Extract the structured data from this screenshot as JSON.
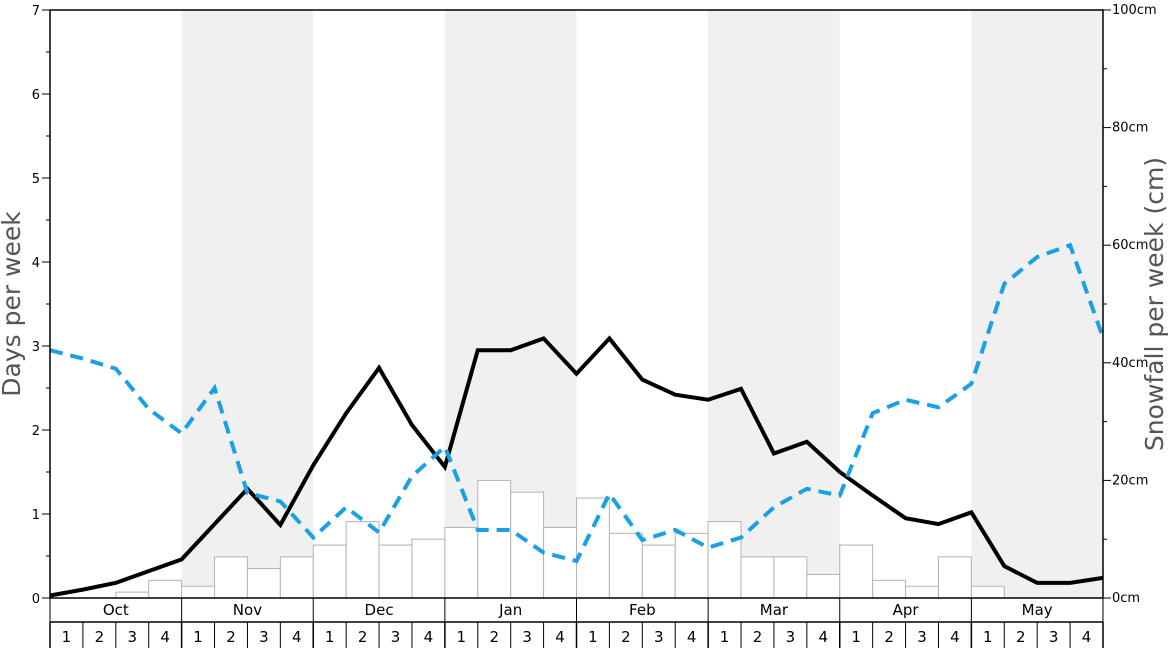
{
  "chart_data": {
    "type": "bar+line",
    "title": "",
    "ylabel_left": "Days per week",
    "ylabel_right": "Snowfall per week (cm)",
    "ylim_left": [
      0,
      7
    ],
    "ylim_right": [
      0,
      100
    ],
    "left_ticks": [
      "0",
      "1",
      "2",
      "3",
      "4",
      "5",
      "6",
      "7"
    ],
    "right_ticks": [
      "0cm",
      "20cm",
      "40cm",
      "60cm",
      "80cm",
      "100cm"
    ],
    "months": [
      "Oct",
      "Nov",
      "Dec",
      "Jan",
      "Feb",
      "Mar",
      "Apr",
      "May"
    ],
    "week_labels": [
      "1",
      "2",
      "3",
      "4"
    ],
    "shaded_months": [
      "Nov",
      "Jan",
      "Mar",
      "May"
    ],
    "colors": {
      "shade": "#f0f0f0",
      "snowfall_bar_fill": "#ffffff",
      "snowfall_bar_stroke": "#b3b3b3",
      "black_line": "#000000",
      "blue_dashed_line": "#19a0e6",
      "axis_title": "#555555"
    },
    "series": [
      {
        "axis": "right",
        "style": "bar",
        "color": "#ffffff",
        "values": [
          0.0,
          0.0,
          1.0,
          3.0,
          2.0,
          7.0,
          5.0,
          7.0,
          9.0,
          13.0,
          9.0,
          10.0,
          12.0,
          20.0,
          18.0,
          12.0,
          17.0,
          11.0,
          9.0,
          11.0,
          13.0,
          7.0,
          7.0,
          4.0,
          9.0,
          3.0,
          2.0,
          7.0,
          2.0,
          0.0,
          0.0,
          0.0
        ]
      },
      {
        "axis": "left",
        "style": "solid",
        "color": "#000000",
        "values": [
          0.03,
          0.1,
          0.18,
          0.32,
          0.46,
          0.88,
          1.3,
          0.87,
          1.58,
          2.2,
          2.74,
          2.06,
          1.56,
          2.95,
          2.95,
          3.09,
          2.67,
          3.09,
          2.6,
          2.42,
          2.36,
          2.49,
          1.72,
          1.86,
          1.5,
          1.22,
          0.95,
          0.88,
          1.02,
          0.38,
          0.18,
          0.18,
          0.24
        ]
      },
      {
        "axis": "left",
        "style": "dashed",
        "color": "#19a0e6",
        "values": [
          2.95,
          2.85,
          2.73,
          2.25,
          1.96,
          2.5,
          1.25,
          1.15,
          0.72,
          1.08,
          0.78,
          1.45,
          1.8,
          0.81,
          0.81,
          0.54,
          0.44,
          1.24,
          0.69,
          0.81,
          0.6,
          0.72,
          1.08,
          1.3,
          1.22,
          2.2,
          2.36,
          2.27,
          2.55,
          3.74,
          4.06,
          4.2,
          3.1
        ]
      }
    ]
  }
}
